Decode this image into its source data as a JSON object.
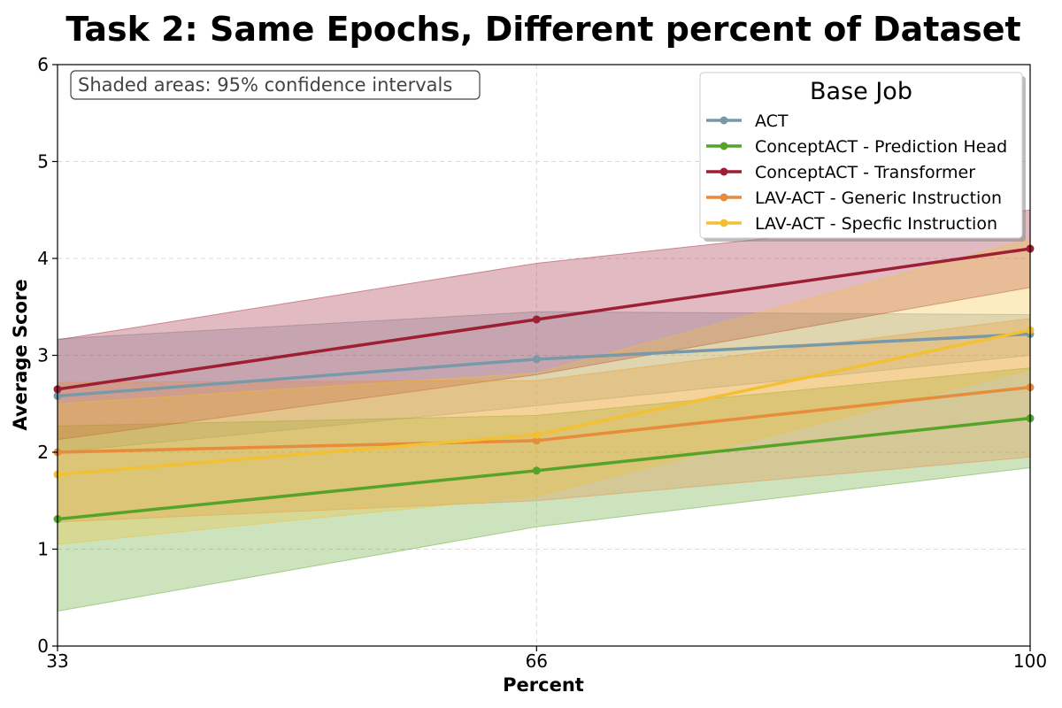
{
  "chart_data": {
    "type": "line",
    "title": "Task 2: Same Epochs, Different percent of Dataset",
    "xlabel": "Percent",
    "ylabel": "Average Score",
    "x": [
      33,
      66,
      100
    ],
    "xticks": [
      "33",
      "66",
      "100"
    ],
    "yticks": [
      "0",
      "1",
      "2",
      "3",
      "4",
      "5",
      "6"
    ],
    "xlim": [
      33,
      100
    ],
    "ylim": [
      0,
      6
    ],
    "grid": true,
    "legend": {
      "title": "Base Job",
      "placement": "top-right"
    },
    "annotation": "Shaded areas: 95% confidence intervals",
    "series": [
      {
        "name": "ACT",
        "color": "#7a99a8",
        "values": [
          2.58,
          2.96,
          3.22
        ],
        "ci_lower": [
          2.0,
          2.48,
          3.0
        ],
        "ci_upper": [
          3.17,
          3.45,
          3.42
        ]
      },
      {
        "name": "ConceptACT - Prediction Head",
        "color": "#56a329",
        "values": [
          1.31,
          1.81,
          2.35
        ],
        "ci_lower": [
          0.36,
          1.23,
          1.84
        ],
        "ci_upper": [
          2.27,
          2.38,
          2.87
        ]
      },
      {
        "name": "ConceptACT - Transformer",
        "color": "#9e1f34",
        "values": [
          2.65,
          3.37,
          4.1
        ],
        "ci_lower": [
          2.13,
          2.8,
          3.7
        ],
        "ci_upper": [
          3.16,
          3.95,
          4.5
        ]
      },
      {
        "name": "LAV-ACT - Generic Instruction",
        "color": "#e68c3b",
        "values": [
          2.0,
          2.12,
          2.67
        ],
        "ci_lower": [
          1.28,
          1.5,
          1.95
        ],
        "ci_upper": [
          2.72,
          2.74,
          3.38
        ]
      },
      {
        "name": "LAV-ACT - Specfic Instruction",
        "color": "#f2c133",
        "values": [
          1.77,
          2.18,
          3.26
        ],
        "ci_lower": [
          1.05,
          1.55,
          2.85
        ],
        "ci_upper": [
          2.5,
          2.82,
          4.2
        ]
      }
    ]
  }
}
